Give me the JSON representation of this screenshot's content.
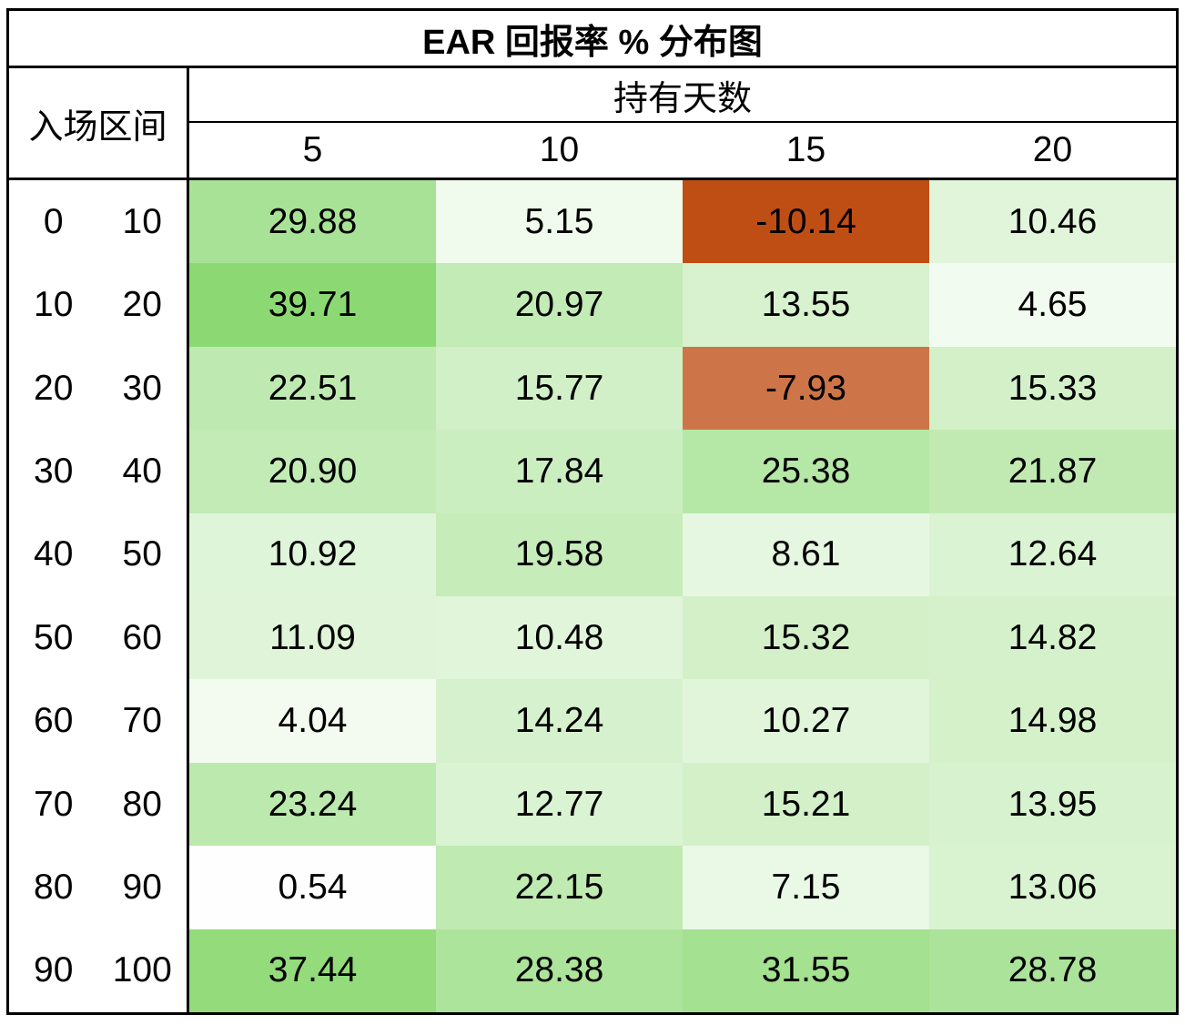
{
  "chart_data": {
    "type": "heatmap",
    "title": "EAR 回报率 % 分布图",
    "row_header_label": "入场区间",
    "col_group_label": "持有天数",
    "categories": [
      "5",
      "10",
      "15",
      "20"
    ],
    "rows": [
      {
        "range": [
          "0",
          "10"
        ],
        "values": [
          29.88,
          5.15,
          -10.14,
          10.46
        ]
      },
      {
        "range": [
          "10",
          "20"
        ],
        "values": [
          39.71,
          20.97,
          13.55,
          4.65
        ]
      },
      {
        "range": [
          "20",
          "30"
        ],
        "values": [
          22.51,
          15.77,
          -7.93,
          15.33
        ]
      },
      {
        "range": [
          "30",
          "40"
        ],
        "values": [
          20.9,
          17.84,
          25.38,
          21.87
        ]
      },
      {
        "range": [
          "40",
          "50"
        ],
        "values": [
          10.92,
          19.58,
          8.61,
          12.64
        ]
      },
      {
        "range": [
          "50",
          "60"
        ],
        "values": [
          11.09,
          10.48,
          15.32,
          14.82
        ]
      },
      {
        "range": [
          "60",
          "70"
        ],
        "values": [
          4.04,
          14.24,
          10.27,
          14.98
        ]
      },
      {
        "range": [
          "70",
          "80"
        ],
        "values": [
          23.24,
          12.77,
          15.21,
          13.95
        ]
      },
      {
        "range": [
          "80",
          "90"
        ],
        "values": [
          0.54,
          22.15,
          7.15,
          13.06
        ]
      },
      {
        "range": [
          "90",
          "100"
        ],
        "values": [
          37.44,
          28.38,
          31.55,
          28.78
        ]
      }
    ],
    "value_decimals": 2,
    "value_domain": {
      "min": -10.14,
      "zero": 0,
      "max": 39.71
    },
    "colors": {
      "positive_max": "#8cd973",
      "negative_min": "#bf4e15",
      "zero": "#ffffff",
      "text": "#000000",
      "border": "#000000"
    },
    "layout_hints": {
      "legend": "none",
      "grid": "outer-and-header-borders-only"
    }
  }
}
